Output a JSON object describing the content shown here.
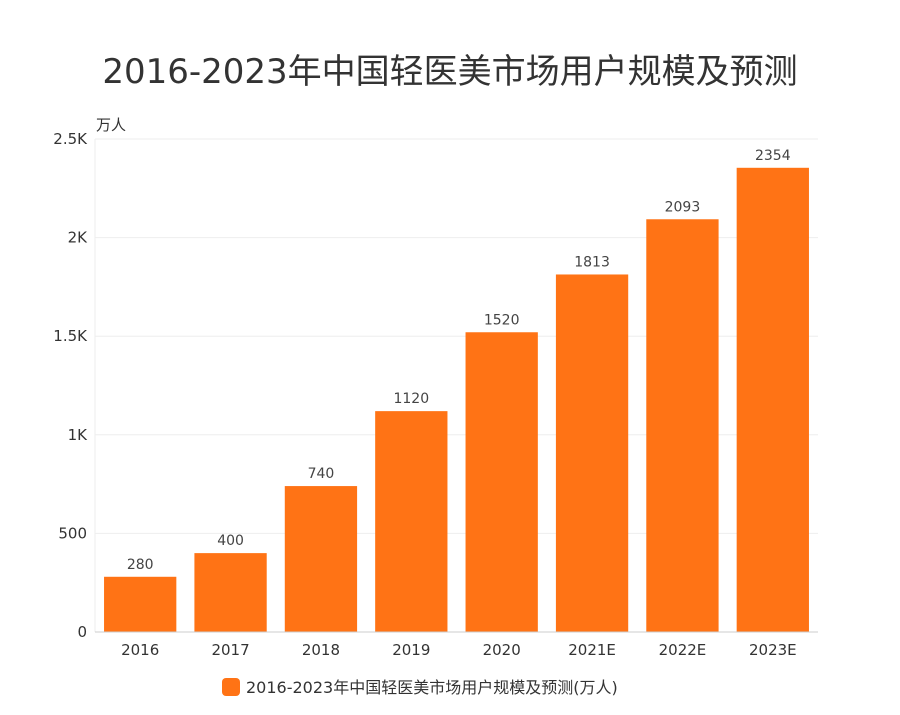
{
  "chart_data": {
    "type": "bar",
    "title": "2016-2023年中国轻医美市场用户规模及预测",
    "ylabel": "万人",
    "xlabel": "",
    "categories": [
      "2016",
      "2017",
      "2018",
      "2019",
      "2020",
      "2021E",
      "2022E",
      "2023E"
    ],
    "series": [
      {
        "name": "2016-2023年中国轻医美市场用户规模及预测(万人)",
        "values": [
          280,
          400,
          740,
          1120,
          1520,
          1813,
          2093,
          2354
        ],
        "color": "#FF7315"
      }
    ],
    "ylim": [
      0,
      2500
    ],
    "yticks": [
      0,
      500,
      1000,
      1500,
      2000,
      2500
    ],
    "ytick_labels": [
      "0",
      "500",
      "1K",
      "1.5K",
      "2K",
      "2.5K"
    ],
    "grid": true,
    "legend_position": "bottom",
    "data_labels": true
  }
}
